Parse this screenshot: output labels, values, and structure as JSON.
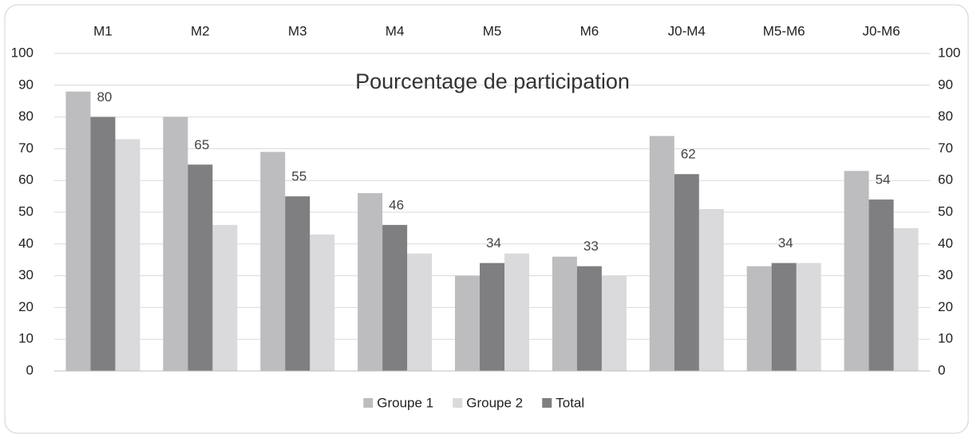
{
  "chart_data": {
    "type": "bar",
    "title": "Pourcentage de participation",
    "categories": [
      "M1",
      "M2",
      "M3",
      "M4",
      "M5",
      "M6",
      "J0-M4",
      "M5-M6",
      "J0-M6"
    ],
    "series": [
      {
        "name": "Groupe 1",
        "color": "#bdbdc0",
        "values": [
          88,
          80,
          69,
          56,
          30,
          36,
          74,
          33,
          63
        ]
      },
      {
        "name": "Groupe 2",
        "color": "#dadadc",
        "values": [
          73,
          46,
          43,
          37,
          37,
          30,
          51,
          34,
          45
        ]
      },
      {
        "name": "Total",
        "color": "#7f7f82",
        "values": [
          80,
          65,
          55,
          46,
          34,
          33,
          62,
          34,
          54
        ],
        "show_labels": true
      }
    ],
    "ylim": [
      0,
      100
    ],
    "yticks": [
      0,
      10,
      20,
      30,
      40,
      50,
      60,
      70,
      80,
      90,
      100
    ],
    "y2lim": [
      0,
      100
    ],
    "y2ticks": [
      0,
      10,
      20,
      30,
      40,
      50,
      60,
      70,
      80,
      90,
      100
    ],
    "grid": true,
    "legend": "bottom"
  }
}
